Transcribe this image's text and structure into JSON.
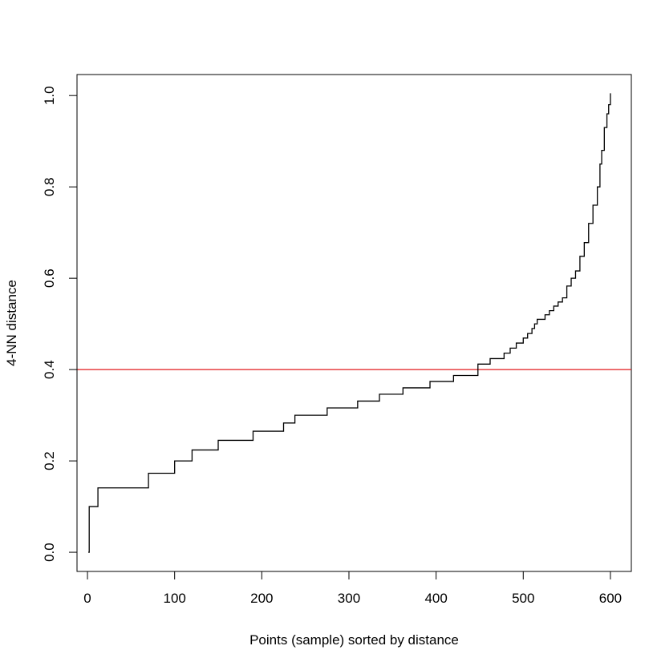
{
  "chart_data": {
    "type": "line",
    "title": "",
    "xlabel": "Points (sample) sorted by distance",
    "ylabel": "4-NN distance",
    "xlim": [
      -12,
      624
    ],
    "ylim": [
      -0.042,
      1.046
    ],
    "x_ticks": [
      0,
      100,
      200,
      300,
      400,
      500,
      600
    ],
    "x_tick_labels": [
      "0",
      "100",
      "200",
      "300",
      "400",
      "500",
      "600"
    ],
    "y_ticks": [
      0.0,
      0.2,
      0.4,
      0.6,
      0.8,
      1.0
    ],
    "y_tick_labels": [
      "0.0",
      "0.2",
      "0.4",
      "0.6",
      "0.8",
      "1.0"
    ],
    "grid": false,
    "series": [
      {
        "color": "#000000",
        "style": "step",
        "x": [
          1,
          2,
          7,
          12,
          70,
          100,
          120,
          150,
          190,
          225,
          238,
          275,
          310,
          335,
          362,
          393,
          420,
          448,
          462,
          478,
          485,
          492,
          500,
          505,
          510,
          513,
          516,
          525,
          530,
          535,
          540,
          545,
          550,
          555,
          560,
          565,
          570,
          575,
          580,
          585,
          588,
          590,
          593,
          596,
          598,
          600
        ],
        "y": [
          0.0,
          0.1,
          0.1,
          0.141,
          0.173,
          0.2,
          0.224,
          0.245,
          0.265,
          0.283,
          0.3,
          0.316,
          0.331,
          0.346,
          0.36,
          0.374,
          0.387,
          0.412,
          0.424,
          0.436,
          0.447,
          0.458,
          0.469,
          0.479,
          0.49,
          0.5,
          0.51,
          0.52,
          0.529,
          0.539,
          0.548,
          0.557,
          0.583,
          0.6,
          0.616,
          0.648,
          0.678,
          0.72,
          0.76,
          0.8,
          0.85,
          0.88,
          0.93,
          0.96,
          0.98,
          1.005
        ]
      }
    ],
    "reference_lines": [
      {
        "orientation": "horizontal",
        "y": 0.4,
        "color": "#e31a1c"
      }
    ]
  }
}
